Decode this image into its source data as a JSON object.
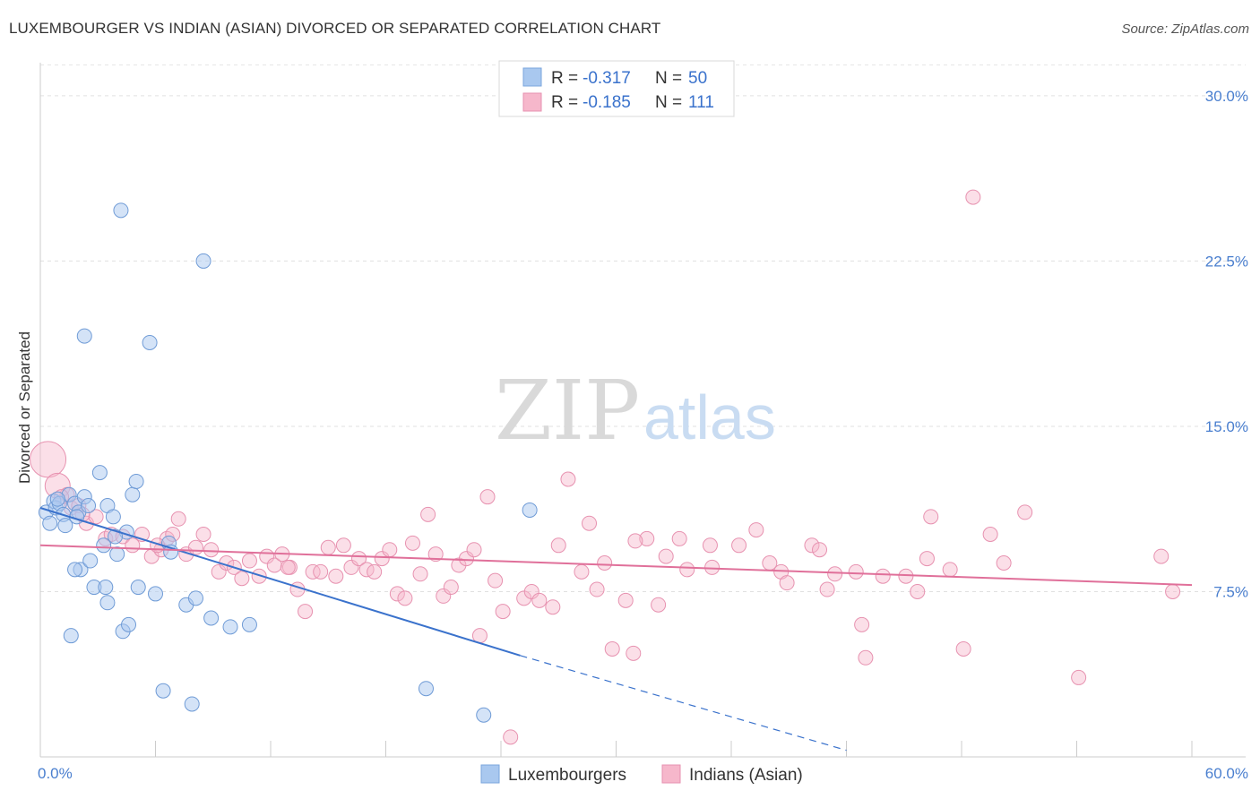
{
  "title": "LUXEMBOURGER VS INDIAN (ASIAN) DIVORCED OR SEPARATED CORRELATION CHART",
  "source": "Source: ZipAtlas.com",
  "watermark": {
    "zip": "ZIP",
    "atlas": "atlas"
  },
  "colors": {
    "blue": "#3a72cc",
    "pink": "#e0709a",
    "blue_fill": "#a9c8ef",
    "pink_fill": "#f6b7cb",
    "grid": "#dddddd",
    "axis_text": "#4a7fcf"
  },
  "legend": {
    "r_label": "R =",
    "n_label": "N =",
    "rows": [
      {
        "r": "-0.317",
        "n": "50"
      },
      {
        "r": "-0.185",
        "n": "111"
      }
    ]
  },
  "chart_data": {
    "type": "scatter",
    "title": "LUXEMBOURGER VS INDIAN (ASIAN) DIVORCED OR SEPARATED CORRELATION CHART",
    "xlabel": "",
    "ylabel": "Divorced or Separated",
    "xlim": [
      0,
      60
    ],
    "ylim": [
      0,
      31.5
    ],
    "x_tick_labels": [
      "0.0%",
      "60.0%"
    ],
    "y_ticks": [
      7.5,
      15.0,
      22.5,
      30.0
    ],
    "y_tick_labels": [
      "7.5%",
      "15.0%",
      "22.5%",
      "30.0%"
    ],
    "grid": true,
    "legend_position": "top-center",
    "series": [
      {
        "name": "Luxembourgers",
        "color": "#3a72cc",
        "r": -0.317,
        "n": 50,
        "trend": {
          "x": [
            0,
            25
          ],
          "y": [
            11.3,
            4.6
          ],
          "dashed_to": [
            42,
            0.3
          ]
        },
        "points": [
          [
            4.2,
            24.8
          ],
          [
            8.5,
            22.5
          ],
          [
            2.3,
            19.1
          ],
          [
            5.7,
            18.8
          ],
          [
            0.3,
            11.1
          ],
          [
            0.5,
            10.6
          ],
          [
            0.7,
            11.6
          ],
          [
            0.8,
            11.3
          ],
          [
            1.0,
            11.5
          ],
          [
            1.2,
            11.0
          ],
          [
            1.3,
            10.5
          ],
          [
            1.5,
            11.9
          ],
          [
            1.8,
            11.5
          ],
          [
            2.0,
            11.1
          ],
          [
            2.3,
            11.8
          ],
          [
            2.5,
            11.4
          ],
          [
            3.1,
            12.9
          ],
          [
            3.5,
            11.4
          ],
          [
            3.8,
            10.9
          ],
          [
            4.5,
            10.2
          ],
          [
            4.8,
            11.9
          ],
          [
            5.0,
            12.5
          ],
          [
            2.1,
            8.5
          ],
          [
            2.6,
            8.9
          ],
          [
            3.3,
            9.6
          ],
          [
            4.0,
            9.2
          ],
          [
            2.8,
            7.7
          ],
          [
            3.4,
            7.7
          ],
          [
            5.1,
            7.7
          ],
          [
            6.0,
            7.4
          ],
          [
            3.5,
            7.0
          ],
          [
            7.6,
            6.9
          ],
          [
            8.1,
            7.2
          ],
          [
            4.3,
            5.7
          ],
          [
            4.6,
            6.0
          ],
          [
            1.6,
            5.5
          ],
          [
            8.9,
            6.3
          ],
          [
            9.9,
            5.9
          ],
          [
            10.9,
            6.0
          ],
          [
            1.8,
            8.5
          ],
          [
            6.7,
            9.7
          ],
          [
            6.8,
            9.3
          ],
          [
            25.5,
            11.2
          ],
          [
            6.4,
            3.0
          ],
          [
            7.9,
            2.4
          ],
          [
            20.1,
            3.1
          ],
          [
            23.1,
            1.9
          ],
          [
            0.9,
            11.7
          ],
          [
            1.9,
            10.9
          ],
          [
            3.9,
            10.0
          ]
        ]
      },
      {
        "name": "Indians (Asian)",
        "color": "#e0709a",
        "r": -0.185,
        "n": 111,
        "trend": {
          "x": [
            0,
            60
          ],
          "y": [
            9.6,
            7.8
          ]
        },
        "points": [
          [
            0.4,
            13.5
          ],
          [
            0.9,
            12.3
          ],
          [
            1.4,
            11.9
          ],
          [
            1.6,
            11.3
          ],
          [
            2.0,
            11.4
          ],
          [
            2.4,
            10.6
          ],
          [
            2.9,
            10.9
          ],
          [
            3.4,
            9.9
          ],
          [
            3.7,
            10.1
          ],
          [
            4.3,
            10.0
          ],
          [
            4.8,
            9.6
          ],
          [
            5.3,
            10.1
          ],
          [
            5.8,
            9.1
          ],
          [
            6.3,
            9.4
          ],
          [
            6.6,
            9.9
          ],
          [
            6.9,
            10.1
          ],
          [
            7.2,
            10.8
          ],
          [
            7.6,
            9.2
          ],
          [
            8.1,
            9.5
          ],
          [
            8.5,
            10.1
          ],
          [
            8.9,
            9.4
          ],
          [
            9.3,
            8.4
          ],
          [
            9.7,
            8.8
          ],
          [
            10.1,
            8.6
          ],
          [
            10.5,
            8.1
          ],
          [
            10.9,
            8.9
          ],
          [
            11.4,
            8.2
          ],
          [
            11.8,
            9.1
          ],
          [
            12.2,
            8.7
          ],
          [
            12.6,
            9.2
          ],
          [
            13.0,
            8.6
          ],
          [
            13.4,
            7.6
          ],
          [
            13.8,
            6.6
          ],
          [
            14.2,
            8.4
          ],
          [
            14.6,
            8.4
          ],
          [
            15.0,
            9.5
          ],
          [
            15.4,
            8.2
          ],
          [
            15.8,
            9.6
          ],
          [
            16.2,
            8.6
          ],
          [
            16.6,
            9.0
          ],
          [
            17.0,
            8.5
          ],
          [
            17.4,
            8.4
          ],
          [
            17.8,
            9.0
          ],
          [
            18.2,
            9.4
          ],
          [
            18.6,
            7.4
          ],
          [
            19.0,
            7.2
          ],
          [
            19.4,
            9.7
          ],
          [
            19.8,
            8.3
          ],
          [
            20.2,
            11.0
          ],
          [
            20.6,
            9.2
          ],
          [
            21.0,
            7.3
          ],
          [
            21.4,
            7.7
          ],
          [
            21.8,
            8.7
          ],
          [
            22.2,
            9.0
          ],
          [
            22.6,
            9.4
          ],
          [
            22.9,
            5.5
          ],
          [
            23.3,
            11.8
          ],
          [
            23.7,
            8.0
          ],
          [
            24.1,
            6.6
          ],
          [
            24.5,
            0.9
          ],
          [
            25.2,
            7.2
          ],
          [
            25.6,
            7.5
          ],
          [
            26.0,
            7.1
          ],
          [
            26.7,
            6.8
          ],
          [
            27.0,
            9.6
          ],
          [
            27.5,
            12.6
          ],
          [
            28.2,
            8.4
          ],
          [
            28.6,
            10.6
          ],
          [
            29.0,
            7.6
          ],
          [
            29.4,
            8.8
          ],
          [
            29.8,
            4.9
          ],
          [
            30.5,
            7.1
          ],
          [
            30.9,
            4.7
          ],
          [
            31.6,
            9.9
          ],
          [
            32.2,
            6.9
          ],
          [
            32.6,
            9.1
          ],
          [
            33.3,
            9.9
          ],
          [
            33.7,
            8.5
          ],
          [
            34.9,
            9.6
          ],
          [
            35.0,
            8.6
          ],
          [
            36.4,
            9.6
          ],
          [
            37.3,
            10.3
          ],
          [
            38.0,
            8.8
          ],
          [
            38.6,
            8.4
          ],
          [
            38.9,
            7.9
          ],
          [
            40.2,
            9.6
          ],
          [
            40.6,
            9.4
          ],
          [
            41.0,
            7.6
          ],
          [
            41.4,
            8.3
          ],
          [
            42.5,
            8.4
          ],
          [
            42.8,
            6.0
          ],
          [
            43.0,
            4.5
          ],
          [
            43.9,
            8.2
          ],
          [
            45.1,
            8.2
          ],
          [
            45.7,
            7.5
          ],
          [
            46.2,
            9.0
          ],
          [
            46.4,
            10.9
          ],
          [
            47.4,
            8.5
          ],
          [
            48.6,
            25.4
          ],
          [
            48.1,
            4.9
          ],
          [
            49.5,
            10.1
          ],
          [
            50.2,
            8.8
          ],
          [
            51.3,
            11.1
          ],
          [
            54.1,
            3.6
          ],
          [
            59.0,
            7.5
          ],
          [
            58.4,
            9.1
          ],
          [
            1.1,
            11.8
          ],
          [
            2.2,
            11.0
          ],
          [
            6.1,
            9.6
          ],
          [
            12.9,
            8.6
          ],
          [
            31.0,
            9.8
          ]
        ]
      }
    ]
  }
}
